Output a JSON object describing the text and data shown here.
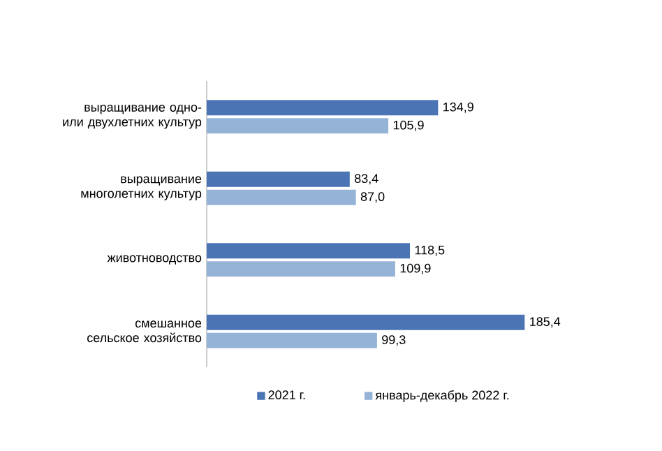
{
  "chart_data": {
    "type": "bar",
    "orientation": "horizontal",
    "categories": [
      "выращивание одно-или двухлетних культур",
      "выращивание многолетних культур",
      "животноводство",
      "смешанное сельское хозяйство"
    ],
    "series": [
      {
        "name": "2021 г.",
        "color": "#4a74b4",
        "values": [
          134.9,
          83.4,
          118.5,
          185.4
        ],
        "value_labels": [
          "134,9",
          "83,4",
          "118,5",
          "185,4"
        ]
      },
      {
        "name": "январь-декабрь 2022 г.",
        "color": "#95b3d7",
        "values": [
          105.9,
          87.0,
          109.9,
          99.3
        ],
        "value_labels": [
          "105,9",
          "87,0",
          "109,9",
          "99,3"
        ]
      }
    ],
    "legend": "bottom"
  }
}
